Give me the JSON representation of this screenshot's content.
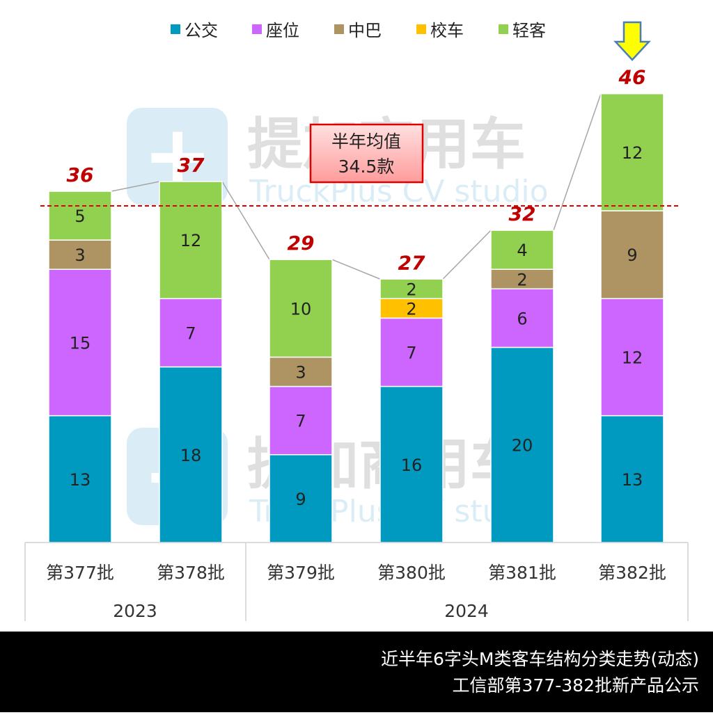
{
  "chart_data": {
    "type": "bar",
    "stacked": true,
    "categories": [
      "第377批",
      "第378批",
      "第379批",
      "第380批",
      "第381批",
      "第382批"
    ],
    "groups": [
      {
        "label": "2023",
        "categories": [
          "第377批",
          "第378批"
        ]
      },
      {
        "label": "2024",
        "categories": [
          "第379批",
          "第380批",
          "第381批",
          "第382批"
        ]
      }
    ],
    "series": [
      {
        "name": "公交",
        "color": "#0099BF",
        "values": [
          13,
          18,
          9,
          16,
          20,
          13
        ]
      },
      {
        "name": "座位",
        "color": "#CC66FF",
        "values": [
          15,
          7,
          7,
          7,
          6,
          12
        ]
      },
      {
        "name": "中巴",
        "color": "#AD9462",
        "values": [
          3,
          0,
          3,
          0,
          2,
          9
        ]
      },
      {
        "name": "校车",
        "color": "#FFC000",
        "values": [
          0,
          0,
          0,
          2,
          0,
          0
        ]
      },
      {
        "name": "轻客",
        "color": "#92D050",
        "values": [
          5,
          12,
          10,
          2,
          4,
          12
        ]
      }
    ],
    "totals": [
      36,
      37,
      29,
      27,
      32,
      46
    ],
    "average": {
      "value": 34.5,
      "label_line1": "半年均值",
      "label_line2": "34.5款",
      "color": "#E00000"
    },
    "highlight_arrow_category": "第382批",
    "legend_position": "top",
    "grid": false,
    "ylim": [
      0,
      50
    ]
  },
  "watermark": {
    "cn": "提加商用车",
    "en": "TruckPlus CV studio"
  },
  "footer": {
    "line1": "近半年6字头M类客车结构分类走势(动态)",
    "line2": "工信部第377-382批新产品公示"
  }
}
